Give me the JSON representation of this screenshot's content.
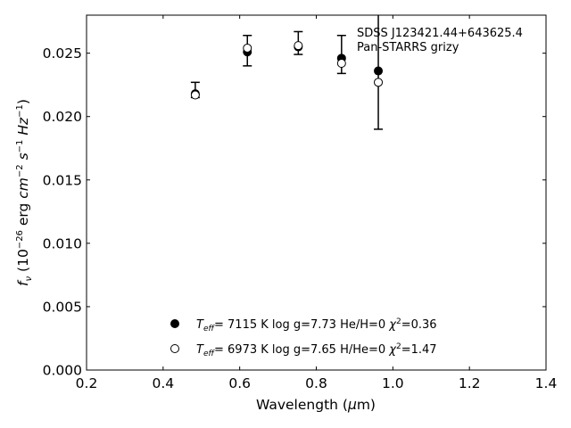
{
  "chart_data": {
    "type": "scatter",
    "xlabel": "Wavelength (μm)",
    "ylabel": "f_ν (10^−26 erg cm^−2 s^−1 Hz^−1)",
    "xlim": [
      0.2,
      1.4
    ],
    "ylim": [
      0.0,
      0.028
    ],
    "x_ticks": [
      "0.2",
      "0.4",
      "0.6",
      "0.8",
      "1.0",
      "1.2",
      "1.4"
    ],
    "y_ticks": [
      "0.000",
      "0.005",
      "0.010",
      "0.015",
      "0.020",
      "0.025"
    ],
    "grid": false,
    "annotations": [
      "SDSS J123421.44+643625.4",
      "Pan-STARRS grizy"
    ],
    "observed": {
      "x": [
        0.484,
        0.62,
        0.753,
        0.866,
        0.962
      ],
      "y": [
        0.0221,
        0.0252,
        0.0258,
        0.0249,
        0.0242
      ],
      "yerr": [
        0.0006,
        0.0012,
        0.0009,
        0.0015,
        0.0052
      ]
    },
    "series": [
      {
        "name": "T_eff= 7115 K log g=7.73 He/H=0 χ²=0.36",
        "marker": "filled-circle",
        "x": [
          0.484,
          0.62,
          0.753,
          0.866,
          0.962
        ],
        "y": [
          0.0218,
          0.0251,
          0.0255,
          0.0246,
          0.0236
        ]
      },
      {
        "name": "T_eff= 6973 K log g=7.65 H/He=0 χ²=1.47",
        "marker": "open-circle",
        "x": [
          0.484,
          0.62,
          0.753,
          0.866,
          0.962
        ],
        "y": [
          0.0217,
          0.0254,
          0.0256,
          0.0242,
          0.0227
        ]
      }
    ],
    "legend_placement": "lower-center",
    "colors": {
      "marker": "#000000",
      "background": "#ffffff"
    }
  }
}
